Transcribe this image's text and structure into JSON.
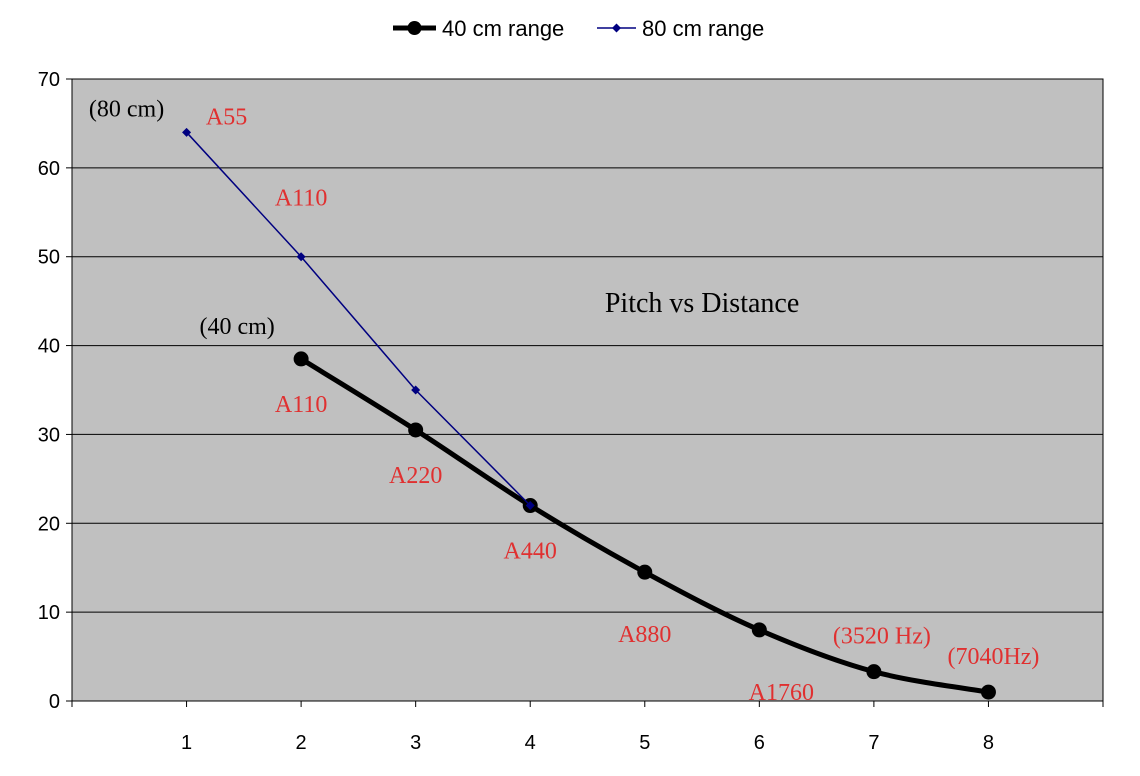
{
  "chart_data": {
    "type": "line",
    "title": "Pitch vs Distance",
    "xlabel": "",
    "ylabel": "",
    "x": [
      1,
      2,
      3,
      4,
      5,
      6,
      7,
      8
    ],
    "x_ticks": [
      "1",
      "2",
      "3",
      "4",
      "5",
      "6",
      "7",
      "8"
    ],
    "xlim": [
      0,
      9
    ],
    "y_ticks": [
      "0",
      "10",
      "20",
      "30",
      "40",
      "50",
      "60",
      "70"
    ],
    "ylim": [
      0,
      70
    ],
    "grid": true,
    "legend_position": "top",
    "plot_background": "#c0c0c0",
    "series": [
      {
        "name": "40 cm range",
        "color": "#000000",
        "marker": "circle",
        "points": [
          {
            "x": 2,
            "y": 38.5
          },
          {
            "x": 3,
            "y": 30.5
          },
          {
            "x": 4,
            "y": 22
          },
          {
            "x": 5,
            "y": 14.5
          },
          {
            "x": 6,
            "y": 8
          },
          {
            "x": 7,
            "y": 3.3
          },
          {
            "x": 8,
            "y": 1
          }
        ]
      },
      {
        "name": "80 cm range",
        "color": "#000080",
        "marker": "diamond",
        "points": [
          {
            "x": 1,
            "y": 64
          },
          {
            "x": 2,
            "y": 50
          },
          {
            "x": 3,
            "y": 35
          },
          {
            "x": 4,
            "y": 22
          }
        ]
      }
    ],
    "annotations": [
      {
        "text": "(80 cm)",
        "color": "#000000",
        "x": 1,
        "y": 64,
        "anchor": "above-left"
      },
      {
        "text": "A55",
        "color": "#e03030",
        "x": 1,
        "y": 64,
        "anchor": "above-right"
      },
      {
        "text": "A110",
        "color": "#e03030",
        "x": 2,
        "y": 50,
        "anchor": "above"
      },
      {
        "text": "(40 cm)",
        "color": "#000000",
        "x": 2,
        "y": 38.5,
        "anchor": "above-left"
      },
      {
        "text": "A110",
        "color": "#e03030",
        "x": 2,
        "y": 38.5,
        "anchor": "below"
      },
      {
        "text": "A220",
        "color": "#e03030",
        "x": 3,
        "y": 30.5,
        "anchor": "below"
      },
      {
        "text": "A440",
        "color": "#e03030",
        "x": 4,
        "y": 22,
        "anchor": "below"
      },
      {
        "text": "A880",
        "color": "#e03030",
        "x": 5,
        "y": 14.5,
        "anchor": "below"
      },
      {
        "text": "A1760",
        "color": "#e03030",
        "x": 6,
        "y": 8,
        "anchor": "below"
      },
      {
        "text": "(3520 Hz)",
        "color": "#e03030",
        "x": 7,
        "y": 3.3,
        "anchor": "above"
      },
      {
        "text": "(7040Hz)",
        "color": "#e03030",
        "x": 8,
        "y": 1,
        "anchor": "above"
      }
    ]
  }
}
